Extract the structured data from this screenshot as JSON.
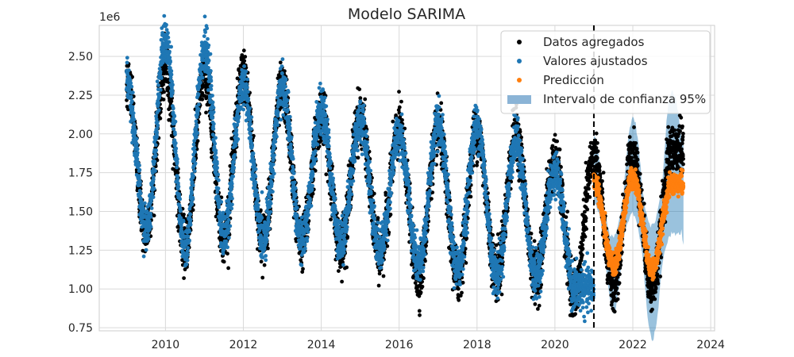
{
  "chart_data": {
    "type": "scatter",
    "title": "Modelo SARIMA",
    "xlabel": "",
    "ylabel": "",
    "y_multiplier": "1e6",
    "xlim": [
      2008.3,
      2024.1
    ],
    "ylim": [
      0.73,
      2.7
    ],
    "x_ticks": [
      "2010",
      "2012",
      "2014",
      "2016",
      "2018",
      "2020",
      "2022",
      "2024"
    ],
    "y_ticks": [
      "0.75",
      "1.00",
      "1.25",
      "1.50",
      "1.75",
      "2.00",
      "2.25",
      "2.50"
    ],
    "grid": true,
    "legend_position": "top-right",
    "vertical_line": {
      "x": 2021.0,
      "style": "dashed",
      "color": "#000000"
    },
    "legend": [
      {
        "label": "Datos agregados",
        "kind": "marker",
        "color": "#000000"
      },
      {
        "label": "Valores ajustados",
        "kind": "marker",
        "color": "#1f77b4"
      },
      {
        "label": "Predicción",
        "kind": "marker",
        "color": "#ff7f0e"
      },
      {
        "label": "Intervalo de confianza 95%",
        "kind": "patch",
        "color": "#8bb4d6"
      }
    ],
    "series": [
      {
        "name": "Datos agregados",
        "color": "#000000",
        "range": [
          2009.0,
          2023.3
        ],
        "annual_peaks": [
          {
            "x": 2009.0,
            "y": 2.35
          },
          {
            "x": 2010.0,
            "y": 2.42
          },
          {
            "x": 2011.0,
            "y": 2.38
          },
          {
            "x": 2012.0,
            "y": 2.38
          },
          {
            "x": 2013.0,
            "y": 2.28
          },
          {
            "x": 2014.0,
            "y": 2.12
          },
          {
            "x": 2015.0,
            "y": 2.12
          },
          {
            "x": 2016.0,
            "y": 2.02
          },
          {
            "x": 2017.0,
            "y": 2.02
          },
          {
            "x": 2018.0,
            "y": 2.02
          },
          {
            "x": 2019.0,
            "y": 1.98
          },
          {
            "x": 2020.0,
            "y": 1.82
          },
          {
            "x": 2021.0,
            "y": 1.86
          },
          {
            "x": 2022.0,
            "y": 1.86
          },
          {
            "x": 2023.0,
            "y": 1.9
          }
        ],
        "annual_troughs": [
          {
            "x": 2009.5,
            "y": 1.38
          },
          {
            "x": 2010.5,
            "y": 1.28
          },
          {
            "x": 2011.5,
            "y": 1.35
          },
          {
            "x": 2012.5,
            "y": 1.32
          },
          {
            "x": 2013.5,
            "y": 1.3
          },
          {
            "x": 2014.5,
            "y": 1.28
          },
          {
            "x": 2015.5,
            "y": 1.22
          },
          {
            "x": 2016.5,
            "y": 1.08
          },
          {
            "x": 2017.5,
            "y": 1.08
          },
          {
            "x": 2018.5,
            "y": 1.1
          },
          {
            "x": 2019.5,
            "y": 1.08
          },
          {
            "x": 2020.5,
            "y": 0.95
          },
          {
            "x": 2021.5,
            "y": 1.02
          },
          {
            "x": 2022.5,
            "y": 1.02
          }
        ]
      },
      {
        "name": "Valores ajustados",
        "color": "#1f77b4",
        "range": [
          2009.0,
          2021.0
        ],
        "annual_peaks": [
          {
            "x": 2009.0,
            "y": 2.35
          },
          {
            "x": 2010.0,
            "y": 2.6
          },
          {
            "x": 2011.0,
            "y": 2.55
          },
          {
            "x": 2012.0,
            "y": 2.3
          },
          {
            "x": 2013.0,
            "y": 2.3
          },
          {
            "x": 2014.0,
            "y": 2.15
          },
          {
            "x": 2015.0,
            "y": 2.08
          },
          {
            "x": 2016.0,
            "y": 2.0
          },
          {
            "x": 2017.0,
            "y": 2.05
          },
          {
            "x": 2018.0,
            "y": 2.05
          },
          {
            "x": 2019.0,
            "y": 1.95
          },
          {
            "x": 2020.0,
            "y": 1.75
          }
        ],
        "annual_troughs": [
          {
            "x": 2009.5,
            "y": 1.38
          },
          {
            "x": 2010.5,
            "y": 1.26
          },
          {
            "x": 2011.5,
            "y": 1.35
          },
          {
            "x": 2012.5,
            "y": 1.32
          },
          {
            "x": 2013.5,
            "y": 1.3
          },
          {
            "x": 2014.5,
            "y": 1.3
          },
          {
            "x": 2015.5,
            "y": 1.25
          },
          {
            "x": 2016.5,
            "y": 1.15
          },
          {
            "x": 2017.5,
            "y": 1.12
          },
          {
            "x": 2018.5,
            "y": 1.08
          },
          {
            "x": 2019.5,
            "y": 1.08
          },
          {
            "x": 2020.5,
            "y": 1.0
          }
        ]
      },
      {
        "name": "Predicción",
        "color": "#ff7f0e",
        "range": [
          2021.0,
          2023.3
        ],
        "annual_peaks": [
          {
            "x": 2021.0,
            "y": 1.7
          },
          {
            "x": 2022.0,
            "y": 1.72
          },
          {
            "x": 2023.0,
            "y": 1.68
          }
        ],
        "annual_troughs": [
          {
            "x": 2021.5,
            "y": 1.15
          },
          {
            "x": 2022.5,
            "y": 1.13
          }
        ]
      }
    ],
    "confidence_interval": {
      "name": "Intervalo de confianza 95%",
      "color": "#1f77b4",
      "range": [
        2021.0,
        2023.3
      ],
      "upper_peaks": [
        1.95,
        1.96,
        2.15
      ],
      "lower_troughs": [
        0.98,
        0.92,
        0.88
      ]
    }
  }
}
